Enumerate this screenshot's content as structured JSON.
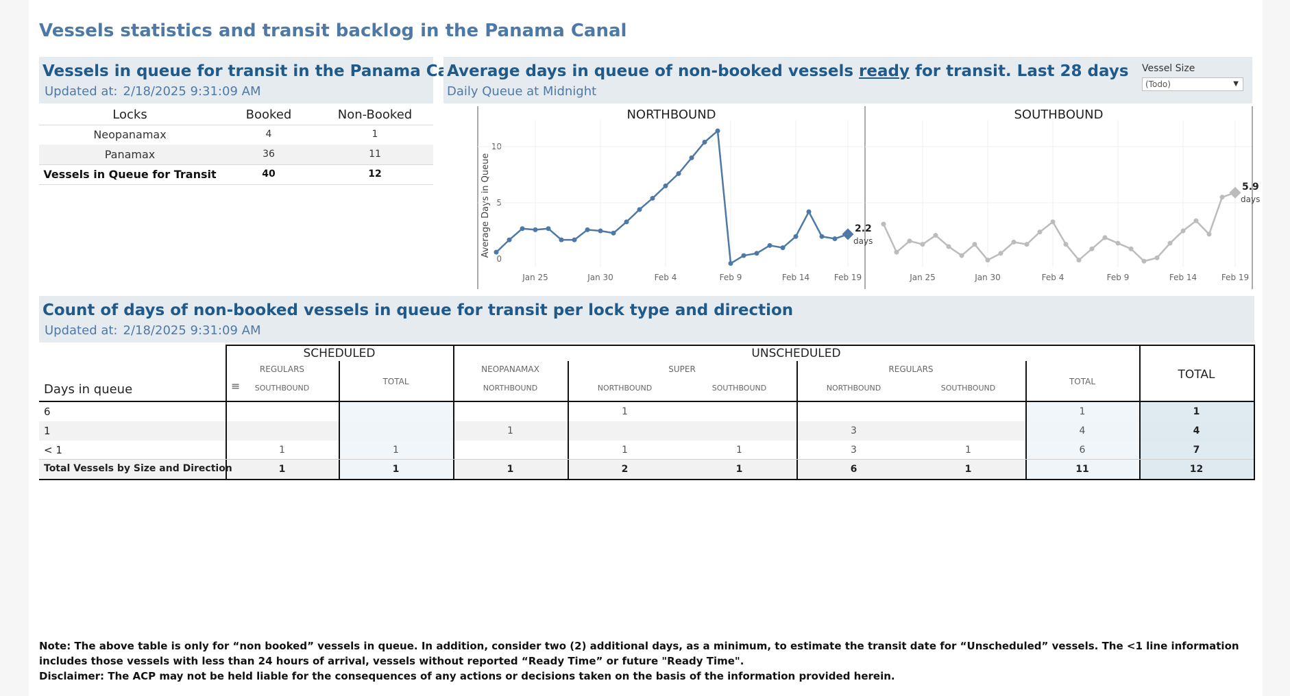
{
  "title": "Vessels statistics and transit backlog in the Panama Canal",
  "queue_panel": {
    "title": "Vessels in queue for transit in the Panama Canal",
    "updated_label": "Updated at:",
    "updated_value": "2/18/2025 9:31:09 AM",
    "headers": [
      "Locks",
      "Booked",
      "Non-Booked"
    ],
    "rows": [
      {
        "lock": "Neopanamax",
        "booked": "4",
        "non_booked": "1"
      },
      {
        "lock": "Panamax",
        "booked": "36",
        "non_booked": "11"
      }
    ],
    "total": {
      "lock": "Vessels in Queue for Transit",
      "booked": "40",
      "non_booked": "12"
    }
  },
  "avg_panel": {
    "title_pre": "Average days in queue of non-booked vessels ",
    "title_ready": "ready",
    "title_post": " for transit. Last 28 days",
    "subtitle": "Daily Queue at Midnight",
    "filter_label": "Vessel Size",
    "filter_value": "(Todo)"
  },
  "chart_data": {
    "type": "line",
    "ylabel": "Average Days in Queue",
    "ylim": [
      -0.5,
      12
    ],
    "yticks": [
      0,
      5,
      10
    ],
    "x_start": "Jan 22",
    "x_end": "Feb 19",
    "xticks": [
      "Jan 25",
      "Jan 30",
      "Feb 4",
      "Feb 9",
      "Feb 14",
      "Feb 19"
    ],
    "colors": {
      "northbound": "#4e79a7",
      "southbound": "#bcbcbc"
    },
    "panes": [
      {
        "name": "NORTHBOUND",
        "values": [
          0.6,
          1.7,
          2.7,
          2.6,
          2.7,
          1.7,
          1.7,
          2.6,
          2.5,
          2.3,
          3.3,
          4.4,
          5.4,
          6.5,
          7.6,
          9.0,
          10.4,
          11.4,
          -0.4,
          0.3,
          0.5,
          1.2,
          1.0,
          2.0,
          4.2,
          2.0,
          1.8,
          2.2
        ],
        "last_label": "2.2",
        "unit_label": "days"
      },
      {
        "name": "SOUTHBOUND",
        "values": [
          3.1,
          0.6,
          1.6,
          1.3,
          2.1,
          1.1,
          0.3,
          1.3,
          -0.1,
          0.5,
          1.5,
          1.3,
          2.4,
          3.3,
          1.3,
          -0.1,
          0.9,
          1.9,
          1.4,
          0.9,
          -0.2,
          0.1,
          1.4,
          2.5,
          3.4,
          2.2,
          5.5,
          5.9
        ],
        "last_label": "5.9",
        "unit_label": "days"
      }
    ]
  },
  "count_panel": {
    "title": "Count of days of non-booked vessels in queue for transit per lock type and direction",
    "updated_label": "Updated at:",
    "updated_value": "2/18/2025 9:31:09 AM",
    "row_header": "Days in queue",
    "groups": {
      "scheduled": "SCHEDULED",
      "unscheduled": "UNSCHEDULED",
      "total": "TOTAL"
    },
    "sizes": {
      "regulars": "REGULARS",
      "neopanamax": "NEOPANAMAX",
      "super": "SUPER",
      "total": "TOTAL"
    },
    "dirs": {
      "southbound": "SOUTHBOUND",
      "northbound": "NORTHBOUND"
    },
    "rows": [
      {
        "label": "6",
        "cells": [
          "",
          "",
          "",
          "1",
          "",
          "",
          "",
          "1",
          "1"
        ]
      },
      {
        "label": "1",
        "cells": [
          "",
          "",
          "1",
          "",
          "",
          "3",
          "",
          "4",
          "4"
        ]
      },
      {
        "label": "< 1",
        "cells": [
          "1",
          "1",
          "",
          "1",
          "1",
          "3",
          "1",
          "6",
          "7"
        ]
      },
      {
        "label": "Total Vessels by Size and Direction",
        "cells": [
          "1",
          "1",
          "1",
          "2",
          "1",
          "6",
          "1",
          "11",
          "12"
        ]
      }
    ]
  },
  "footer": {
    "note": "Note:  The above table is only for “non booked” vessels in queue. In addition, consider two (2) additional days, as a minimum, to estimate the transit date for “Unscheduled” vessels.  The <1 line information includes those vessels with less than 24 hours of arrival, vessels without reported “Ready Time” or future \"Ready Time\".",
    "disclaimer": "Disclaimer: The ACP may not be held liable for the consequences of any actions or decisions taken on the basis of the information provided herein."
  }
}
